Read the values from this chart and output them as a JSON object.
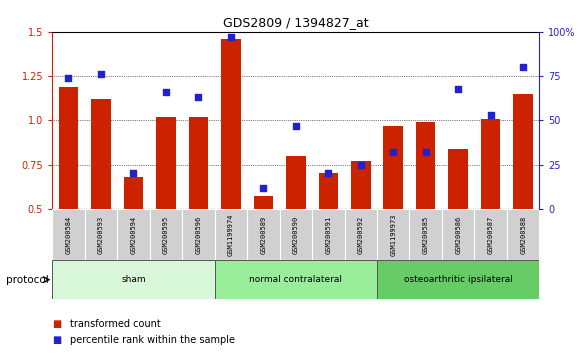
{
  "title": "GDS2809 / 1394827_at",
  "samples": [
    "GSM200584",
    "GSM200593",
    "GSM200594",
    "GSM200595",
    "GSM200596",
    "GSM1199974",
    "GSM200589",
    "GSM200590",
    "GSM200591",
    "GSM200592",
    "GSM1199973",
    "GSM200585",
    "GSM200586",
    "GSM200587",
    "GSM200588"
  ],
  "red_values": [
    1.19,
    1.12,
    0.68,
    1.02,
    1.02,
    1.46,
    0.57,
    0.8,
    0.7,
    0.77,
    0.97,
    0.99,
    0.84,
    1.01,
    1.15
  ],
  "blue_percentiles": [
    74,
    76,
    20,
    66,
    63,
    97,
    12,
    47,
    20,
    25,
    32,
    32,
    68,
    53,
    80
  ],
  "ylim_left": [
    0.5,
    1.5
  ],
  "ylim_right": [
    0,
    100
  ],
  "yticks_left": [
    0.5,
    0.75,
    1.0,
    1.25,
    1.5
  ],
  "yticks_right": [
    0,
    25,
    50,
    75,
    100
  ],
  "ytick_labels_right": [
    "0",
    "25",
    "50",
    "75",
    "100%"
  ],
  "groups": [
    {
      "label": "sham",
      "start": 0,
      "end": 5,
      "color": "#d9f7d9"
    },
    {
      "label": "normal contralateral",
      "start": 5,
      "end": 10,
      "color": "#99ee99"
    },
    {
      "label": "osteoarthritic ipsilateral",
      "start": 10,
      "end": 15,
      "color": "#66cc66"
    }
  ],
  "protocol_label": "protocol",
  "legend_red": "transformed count",
  "legend_blue": "percentile rank within the sample",
  "bar_color": "#cc2200",
  "dot_color": "#2222cc",
  "background_color": "#ffffff",
  "tick_label_bg": "#cccccc",
  "bar_width": 0.6,
  "figsize": [
    5.8,
    3.54
  ],
  "dpi": 100
}
